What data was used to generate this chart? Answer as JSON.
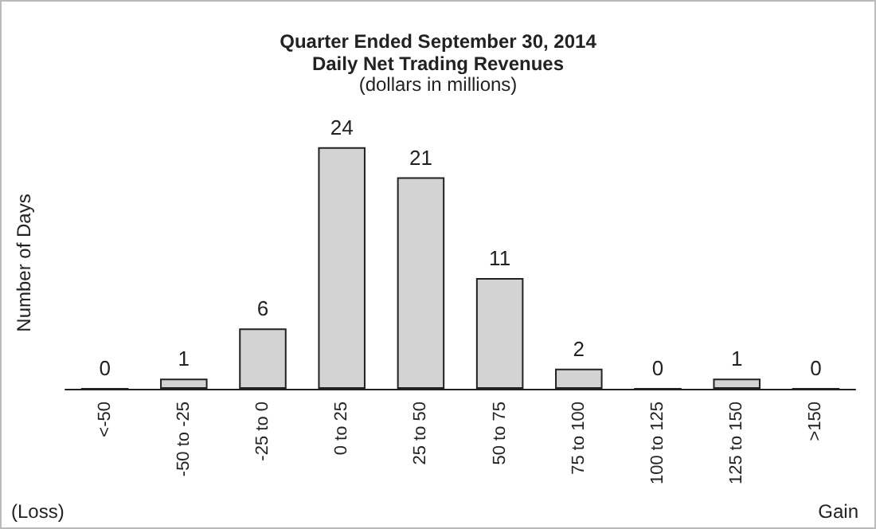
{
  "chart_data": {
    "type": "bar",
    "title": "Quarter Ended September 30, 2014",
    "subtitle": "Daily Net Trading Revenues",
    "annotations": [
      "(dollars in millions)",
      "(Loss)",
      "Gain"
    ],
    "ylabel": "Number of Days",
    "categories": [
      "<-50",
      "-50 to -25",
      "-25 to 0",
      "0 to 25",
      "25 to 50",
      "50 to 75",
      "75 to 100",
      "100 to 125",
      "125 to 150",
      ">150"
    ],
    "values": [
      0,
      1,
      6,
      24,
      21,
      11,
      2,
      0,
      1,
      0
    ],
    "color": "#d3d3d3",
    "data_labels": true
  }
}
